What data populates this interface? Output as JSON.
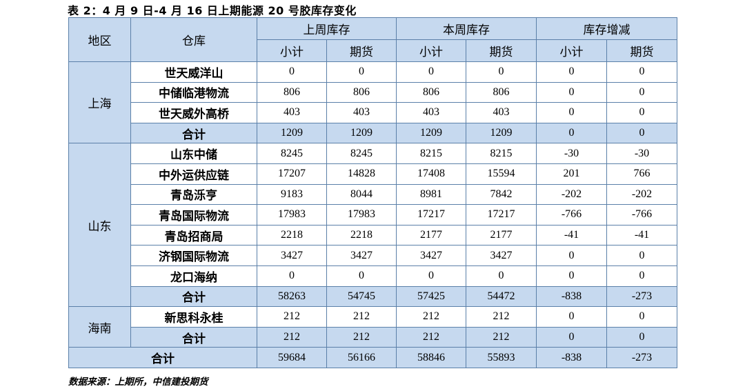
{
  "title": "表 2：4 月 9 日-4 月 16 日上期能源 20 号胶库存变化",
  "headers": {
    "region": "地区",
    "warehouse": "仓库",
    "last_week": "上周库存",
    "this_week": "本周库存",
    "change": "库存增减",
    "subtotal": "小计",
    "futures": "期货"
  },
  "regions": [
    {
      "name": "上海",
      "rows": [
        {
          "warehouse": "世天威洋山",
          "values": [
            "0",
            "0",
            "0",
            "0",
            "0",
            "0"
          ]
        },
        {
          "warehouse": "中储临港物流",
          "values": [
            "806",
            "806",
            "806",
            "806",
            "0",
            "0"
          ]
        },
        {
          "warehouse": "世天威外高桥",
          "values": [
            "403",
            "403",
            "403",
            "403",
            "0",
            "0"
          ]
        },
        {
          "warehouse": "合计",
          "values": [
            "1209",
            "1209",
            "1209",
            "1209",
            "0",
            "0"
          ]
        }
      ]
    },
    {
      "name": "山东",
      "rows": [
        {
          "warehouse": "山东中储",
          "values": [
            "8245",
            "8245",
            "8215",
            "8215",
            "-30",
            "-30"
          ]
        },
        {
          "warehouse": "中外运供应链",
          "values": [
            "17207",
            "14828",
            "17408",
            "15594",
            "201",
            "766"
          ]
        },
        {
          "warehouse": "青岛泺亨",
          "values": [
            "9183",
            "8044",
            "8981",
            "7842",
            "-202",
            "-202"
          ]
        },
        {
          "warehouse": "青岛国际物流",
          "values": [
            "17983",
            "17983",
            "17217",
            "17217",
            "-766",
            "-766"
          ]
        },
        {
          "warehouse": "青岛招商局",
          "values": [
            "2218",
            "2218",
            "2177",
            "2177",
            "-41",
            "-41"
          ]
        },
        {
          "warehouse": "济钢国际物流",
          "values": [
            "3427",
            "3427",
            "3427",
            "3427",
            "0",
            "0"
          ]
        },
        {
          "warehouse": "龙口海纳",
          "values": [
            "0",
            "0",
            "0",
            "0",
            "0",
            "0"
          ]
        },
        {
          "warehouse": "合计",
          "values": [
            "58263",
            "54745",
            "57425",
            "54472",
            "-838",
            "-273"
          ]
        }
      ]
    },
    {
      "name": "海南",
      "rows": [
        {
          "warehouse": "新思科永桂",
          "values": [
            "212",
            "212",
            "212",
            "212",
            "0",
            "0"
          ]
        },
        {
          "warehouse": "合计",
          "values": [
            "212",
            "212",
            "212",
            "212",
            "0",
            "0"
          ]
        }
      ]
    }
  ],
  "grand_total": {
    "label": "合计",
    "values": [
      "59684",
      "56166",
      "58846",
      "55893",
      "-838",
      "-273"
    ]
  },
  "source": "数据来源：上期所，中信建投期货"
}
